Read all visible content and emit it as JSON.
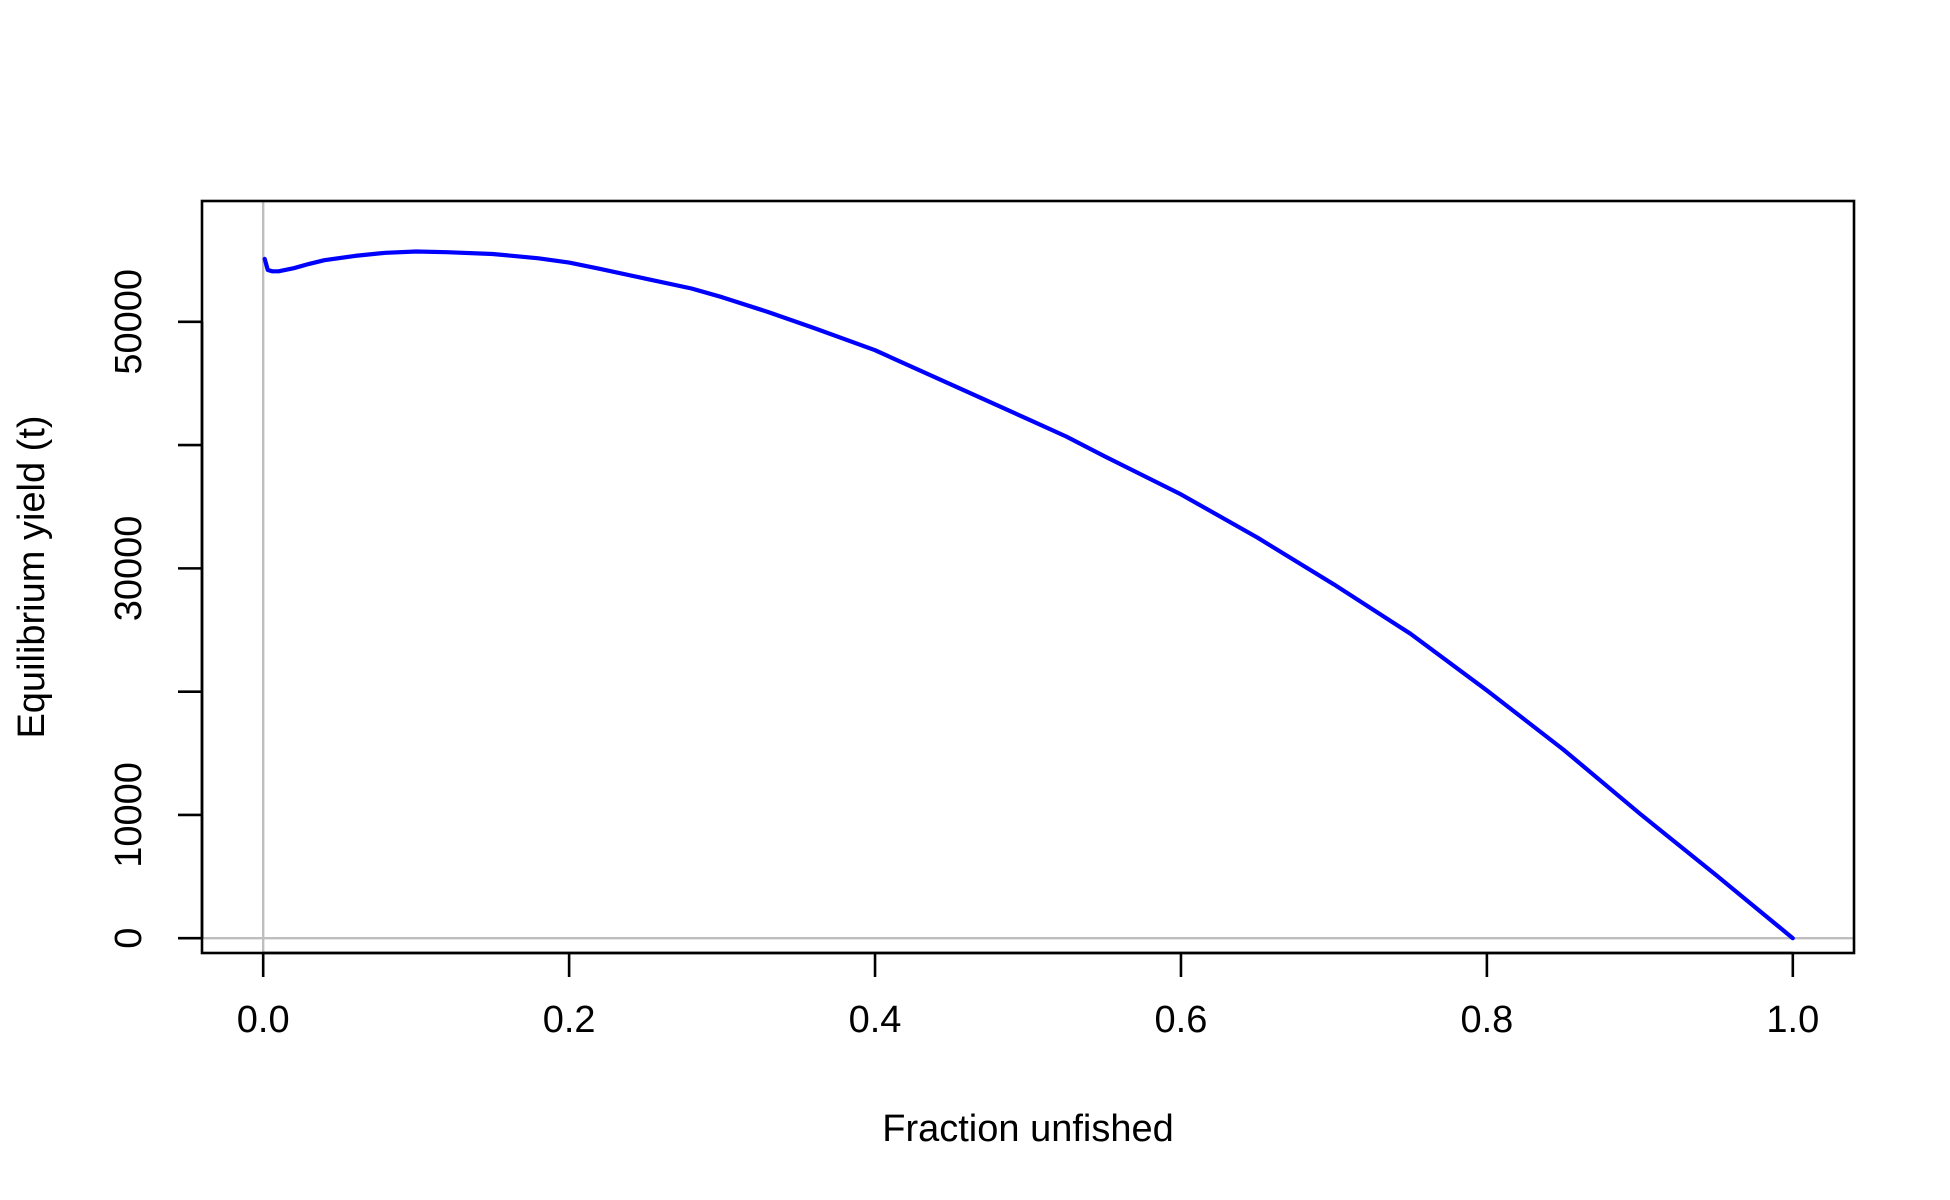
{
  "chart_data": {
    "type": "line",
    "title": "",
    "xlabel": "Fraction unfished",
    "ylabel": "Equilibrium yield (t)",
    "xlim": [
      -0.04,
      1.04
    ],
    "ylim": [
      -1200,
      59800
    ],
    "x_ticks": [
      0.0,
      0.2,
      0.4,
      0.6,
      0.8,
      1.0
    ],
    "x_tick_labels": [
      "0.0",
      "0.2",
      "0.4",
      "0.6",
      "0.8",
      "1.0"
    ],
    "y_ticks": [
      0,
      10000,
      20000,
      30000,
      40000,
      50000
    ],
    "y_tick_labels": [
      "0",
      "10000",
      "",
      "30000",
      "",
      "50000"
    ],
    "reference_lines": {
      "vertical_x": 0,
      "horizontal_y": 0,
      "color": "#bebebe"
    },
    "grid": false,
    "legend": "none",
    "series": [
      {
        "color": "#0000ff",
        "x": [
          0.001,
          0.003,
          0.006,
          0.01,
          0.02,
          0.03,
          0.04,
          0.06,
          0.08,
          0.1,
          0.12,
          0.15,
          0.18,
          0.2,
          0.22,
          0.25,
          0.28,
          0.3,
          0.33,
          0.36,
          0.4,
          0.45,
          0.5,
          0.525,
          0.55,
          0.6,
          0.65,
          0.7,
          0.75,
          0.8,
          0.85,
          0.9,
          0.95,
          1.0
        ],
        "y": [
          55100,
          54200,
          54100,
          54100,
          54350,
          54700,
          55000,
          55350,
          55600,
          55700,
          55650,
          55500,
          55150,
          54800,
          54300,
          53500,
          52700,
          52000,
          50800,
          49500,
          47700,
          44900,
          42100,
          40700,
          39100,
          36000,
          32500,
          28700,
          24700,
          20100,
          15300,
          10100,
          5100,
          0
        ]
      }
    ]
  }
}
